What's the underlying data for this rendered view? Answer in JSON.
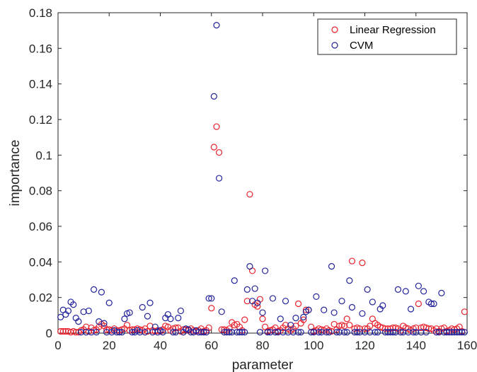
{
  "chart_data": {
    "type": "scatter",
    "title": "",
    "xlabel": "parameter",
    "ylabel": "importance",
    "xlim": [
      0,
      160
    ],
    "ylim": [
      0,
      0.18
    ],
    "xticks": [
      0,
      20,
      40,
      60,
      80,
      100,
      120,
      140,
      160
    ],
    "xtick_labels": [
      "0",
      "20",
      "40",
      "60",
      "80",
      "100",
      "120",
      "140",
      "160"
    ],
    "yticks": [
      0,
      0.02,
      0.04,
      0.06,
      0.08,
      0.1,
      0.12,
      0.14,
      0.16,
      0.18
    ],
    "ytick_labels": [
      "0",
      "0.02",
      "0.04",
      "0.06",
      "0.08",
      "0.1",
      "0.12",
      "0.14",
      "0.16",
      "0.18"
    ],
    "grid": false,
    "legend_position": "top-right",
    "series": [
      {
        "name": "Linear Regression",
        "color": "#e8212b",
        "x": [
          1,
          2,
          3,
          4,
          5,
          6,
          7,
          8,
          9,
          10,
          11,
          12,
          13,
          14,
          15,
          16,
          17,
          18,
          19,
          20,
          21,
          22,
          23,
          24,
          25,
          26,
          27,
          28,
          29,
          30,
          31,
          32,
          33,
          34,
          35,
          36,
          37,
          38,
          39,
          40,
          41,
          42,
          43,
          44,
          45,
          46,
          47,
          48,
          49,
          50,
          51,
          52,
          53,
          54,
          55,
          56,
          57,
          58,
          59,
          60,
          61,
          62,
          63,
          64,
          65,
          66,
          67,
          68,
          69,
          70,
          71,
          72,
          73,
          74,
          75,
          76,
          77,
          78,
          79,
          80,
          81,
          82,
          83,
          84,
          85,
          86,
          87,
          88,
          89,
          90,
          91,
          92,
          93,
          94,
          95,
          96,
          97,
          98,
          99,
          100,
          101,
          102,
          103,
          104,
          105,
          106,
          107,
          108,
          109,
          110,
          111,
          112,
          113,
          114,
          115,
          116,
          117,
          118,
          119,
          120,
          121,
          122,
          123,
          124,
          125,
          126,
          127,
          128,
          129,
          130,
          131,
          132,
          133,
          134,
          135,
          136,
          137,
          138,
          139,
          140,
          141,
          142,
          143,
          144,
          145,
          146,
          147,
          148,
          149,
          150,
          151,
          152,
          153,
          154,
          155,
          156,
          157,
          158,
          159
        ],
        "y": [
          0.001,
          0.001,
          0.001,
          0.001,
          0.0005,
          0.001,
          0.0005,
          0.0005,
          0.0015,
          0.002,
          0.0035,
          0.001,
          0.003,
          0.0015,
          0.002,
          0.0035,
          0.005,
          0.004,
          0.002,
          0.002,
          0.0015,
          0.0025,
          0.0015,
          0.0015,
          0.002,
          0.0025,
          0.0045,
          0.0015,
          0.002,
          0.002,
          0.0025,
          0.002,
          0.0015,
          0.0025,
          0.001,
          0.004,
          0.0015,
          0.001,
          0.0015,
          0.001,
          0.002,
          0.004,
          0.0035,
          0.0015,
          0.0025,
          0.003,
          0.003,
          0.001,
          0.002,
          0.002,
          0.0015,
          0.0025,
          0.0015,
          0.001,
          0.0015,
          0.0025,
          0.001,
          0.0015,
          0.003,
          0.014,
          0.1045,
          0.116,
          0.1015,
          0.002,
          0.002,
          0.0015,
          0.0025,
          0.006,
          0.0045,
          0.005,
          0.0035,
          0.0015,
          0.0075,
          0.018,
          0.078,
          0.035,
          0.016,
          0.015,
          0.019,
          0.008,
          0.0035,
          0.001,
          0.0015,
          0.002,
          0.003,
          0.001,
          0.0015,
          0.003,
          0.0045,
          0.0025,
          0.0015,
          0.0025,
          0.004,
          0.0165,
          0.0055,
          0.0075,
          0.013,
          0.013,
          0.0035,
          0.001,
          0.0015,
          0.0025,
          0.002,
          0.0015,
          0.0025,
          0.0015,
          0.001,
          0.005,
          0.002,
          0.004,
          0.0045,
          0.004,
          0.008,
          0.0045,
          0.0405,
          0.0025,
          0.003,
          0.0025,
          0.0395,
          0.0025,
          0.0025,
          0.004,
          0.008,
          0.0055,
          0.0045,
          0.0035,
          0.003,
          0.0025,
          0.0025,
          0.0025,
          0.003,
          0.003,
          0.0025,
          0.0015,
          0.004,
          0.003,
          0.0025,
          0.0015,
          0.0025,
          0.003,
          0.0165,
          0.003,
          0.0035,
          0.003,
          0.0025,
          0.0025,
          0.0015,
          0.0025,
          0.001,
          0.0025,
          0.003,
          0.001,
          0.0015,
          0.0025,
          0.002,
          0.0025,
          0.0035,
          0.001,
          0.012
        ]
      },
      {
        "name": "CVM",
        "color": "#22229a",
        "x": [
          1,
          2,
          3,
          4,
          5,
          6,
          7,
          8,
          9,
          10,
          11,
          12,
          13,
          14,
          15,
          16,
          17,
          18,
          19,
          20,
          21,
          22,
          23,
          24,
          25,
          26,
          27,
          28,
          29,
          30,
          31,
          32,
          33,
          34,
          35,
          36,
          37,
          38,
          39,
          40,
          41,
          42,
          43,
          44,
          45,
          46,
          47,
          48,
          49,
          50,
          51,
          52,
          53,
          54,
          55,
          56,
          57,
          58,
          59,
          60,
          61,
          62,
          63,
          64,
          65,
          66,
          67,
          68,
          69,
          70,
          71,
          72,
          73,
          74,
          75,
          76,
          77,
          78,
          79,
          80,
          81,
          82,
          83,
          84,
          85,
          86,
          87,
          88,
          89,
          90,
          91,
          92,
          93,
          94,
          95,
          96,
          97,
          98,
          99,
          100,
          101,
          102,
          103,
          104,
          105,
          106,
          107,
          108,
          109,
          110,
          111,
          112,
          113,
          114,
          115,
          116,
          117,
          118,
          119,
          120,
          121,
          122,
          123,
          124,
          125,
          126,
          127,
          128,
          129,
          130,
          131,
          132,
          133,
          134,
          135,
          136,
          137,
          138,
          139,
          140,
          141,
          142,
          143,
          144,
          145,
          146,
          147,
          148,
          149,
          150,
          151,
          152,
          153,
          154,
          155,
          156,
          157,
          158,
          159
        ],
        "y": [
          0.009,
          0.013,
          0.0105,
          0.0125,
          0.0175,
          0.016,
          0.0085,
          0.0065,
          0.0005,
          0.012,
          0.0005,
          0.0125,
          0.0005,
          0.0245,
          0.0005,
          0.0065,
          0.023,
          0.0055,
          0.0005,
          0.017,
          0.0005,
          0.0015,
          0.0005,
          0.0005,
          0.0005,
          0.008,
          0.011,
          0.0115,
          0.0005,
          0.0005,
          0.0015,
          0.0005,
          0.0145,
          0.0005,
          0.0095,
          0.017,
          0.0005,
          0.0035,
          0.0005,
          0.0015,
          0.0005,
          0.0085,
          0.0105,
          0.008,
          0.0005,
          0.0005,
          0.0085,
          0.0125,
          0.0005,
          0.0025,
          0.002,
          0.0005,
          0.0005,
          0.0015,
          0.0005,
          0.0005,
          0.0005,
          0.0005,
          0.0195,
          0.0195,
          0.133,
          0.173,
          0.087,
          0.012,
          0.0005,
          0.0005,
          0.0005,
          0.0005,
          0.0295,
          0.0005,
          0.0005,
          0.0005,
          0.0005,
          0.0245,
          0.0375,
          0.018,
          0.025,
          0.017,
          0.0005,
          0.0115,
          0.035,
          0.0005,
          0.0005,
          0.0195,
          0.0005,
          0.0005,
          0.008,
          0.0005,
          0.018,
          0.0005,
          0.0045,
          0.0005,
          0.0085,
          0.0005,
          0.0005,
          0.009,
          0.012,
          0.013,
          0.0005,
          0.0005,
          0.0205,
          0.0005,
          0.0005,
          0.013,
          0.0005,
          0.0005,
          0.0375,
          0.0115,
          0.0005,
          0.0005,
          0.018,
          0.0005,
          0.0005,
          0.0295,
          0.0145,
          0.0005,
          0.0005,
          0.0005,
          0.011,
          0.0005,
          0.0245,
          0.0005,
          0.0175,
          0.0005,
          0.0005,
          0.0135,
          0.0155,
          0.0005,
          0.0005,
          0.0005,
          0.0005,
          0.0005,
          0.0245,
          0.0005,
          0.0005,
          0.0235,
          0.0005,
          0.0135,
          0.0005,
          0.0005,
          0.0265,
          0.0005,
          0.0235,
          0.0005,
          0.0175,
          0.0165,
          0.0165,
          0.0005,
          0.0005,
          0.0225,
          0.0005,
          0.0005,
          0.0005,
          0.0005,
          0.0005,
          0.0005,
          0.0005,
          0.0005,
          0.0005
        ]
      }
    ]
  }
}
